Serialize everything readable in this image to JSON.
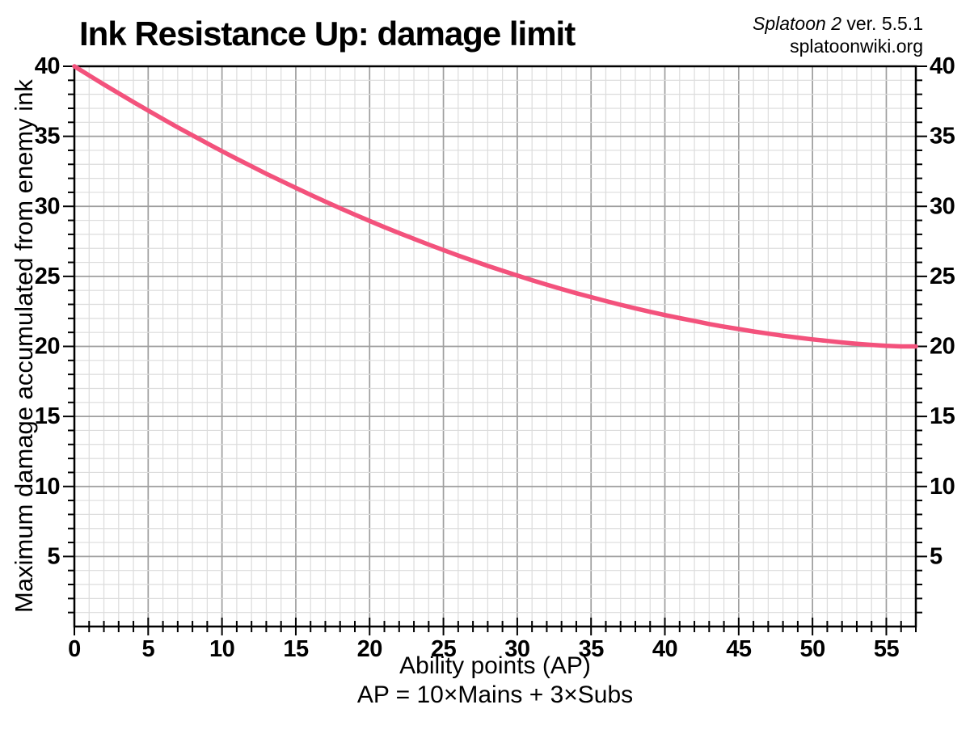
{
  "header": {
    "game_title": "Splatoon 2",
    "version_text": " ver. 5.5.1",
    "site": "splatoonwiki.org"
  },
  "chart_data": {
    "type": "line",
    "title": "Ink Resistance Up: damage limit",
    "xlabel": "Ability points (AP)",
    "xlabel_formula": "AP = 10×Mains + 3×Subs",
    "ylabel": "Maximum damage accumulated from enemy ink",
    "xlim": [
      0,
      57
    ],
    "ylim": [
      0,
      40
    ],
    "x_tick_labels": [
      0,
      5,
      10,
      15,
      20,
      25,
      30,
      35,
      40,
      45,
      50,
      55
    ],
    "y_tick_labels": [
      5,
      10,
      15,
      20,
      25,
      30,
      35,
      40
    ],
    "y_labels_both_sides": true,
    "major_tick_step": 5,
    "minor_tick_step": 1,
    "grid": {
      "on": true,
      "minor_color": "#dcdcdc",
      "major_color": "#9e9e9e"
    },
    "legend": "none",
    "series": [
      {
        "name": "Ink Resistance Up damage limit",
        "color": "#f3527c",
        "x": [
          0,
          1,
          2,
          3,
          4,
          5,
          6,
          7,
          8,
          9,
          10,
          11,
          12,
          13,
          14,
          15,
          16,
          17,
          18,
          19,
          20,
          21,
          22,
          23,
          24,
          25,
          26,
          27,
          28,
          29,
          30,
          31,
          32,
          33,
          34,
          35,
          36,
          37,
          38,
          39,
          40,
          41,
          42,
          43,
          44,
          45,
          46,
          47,
          48,
          49,
          50,
          51,
          52,
          53,
          54,
          55,
          56,
          57
        ],
        "y": [
          40,
          39.35,
          38.7,
          38.07,
          37.45,
          36.84,
          36.23,
          35.64,
          35.07,
          34.5,
          33.94,
          33.39,
          32.86,
          32.33,
          31.82,
          31.32,
          30.82,
          30.34,
          29.87,
          29.41,
          28.96,
          28.52,
          28.09,
          27.68,
          27.27,
          26.88,
          26.49,
          26.12,
          25.75,
          25.4,
          25.06,
          24.73,
          24.41,
          24.1,
          23.8,
          23.52,
          23.24,
          22.97,
          22.72,
          22.47,
          22.24,
          22.02,
          21.81,
          21.6,
          21.41,
          21.24,
          21.07,
          20.91,
          20.76,
          20.63,
          20.5,
          20.39,
          20.28,
          20.19,
          20.11,
          20.04,
          20,
          20
        ]
      }
    ]
  }
}
